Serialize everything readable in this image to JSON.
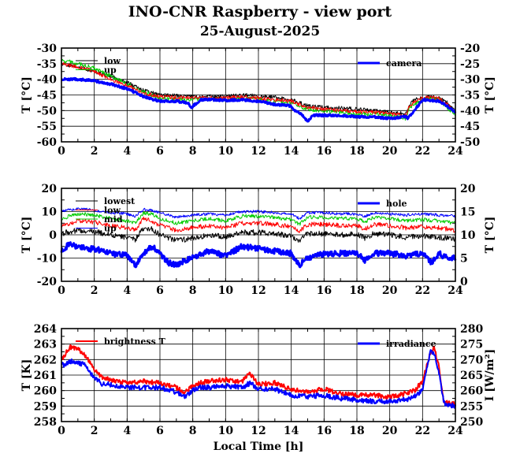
{
  "title": "INO-CNR Raspberry - view port",
  "subtitle": "25-August-2025",
  "colors": {
    "black": "#000000",
    "red": "#ff0000",
    "green": "#00cc00",
    "blue": "#0000ff"
  },
  "chart_data": [
    {
      "type": "line",
      "xlabel": "",
      "ylabel": "T [°C]",
      "y2label": "T [°C]",
      "xlim": [
        0,
        24
      ],
      "ylim": [
        -60,
        -30
      ],
      "y2lim": [
        -50,
        -20
      ],
      "xticks": [
        "0",
        "2",
        "4",
        "6",
        "8",
        "10",
        "12",
        "14",
        "16",
        "18",
        "20",
        "22",
        "24"
      ],
      "yticks": [
        "-60",
        "-55",
        "-50",
        "-45",
        "-40",
        "-35",
        "-30"
      ],
      "y2ticks": [
        "-50",
        "-45",
        "-40",
        "-35",
        "-30",
        "-25",
        "-20"
      ],
      "grid": true,
      "legend": [
        "low",
        "up"
      ],
      "legend2": [
        "camera"
      ],
      "series": [
        {
          "name": "low",
          "color": "#000000",
          "axis": "left",
          "jitter": 0.6,
          "x": [
            0,
            1,
            2,
            3,
            4,
            5,
            6,
            7,
            8,
            9,
            10,
            11,
            12,
            13,
            14,
            15,
            16,
            17,
            18,
            19,
            20,
            21,
            21.2,
            21.6,
            22,
            22.5,
            23,
            23.5,
            24
          ],
          "y": [
            -35,
            -36,
            -37.5,
            -39,
            -41,
            -43.5,
            -45,
            -45.2,
            -45.6,
            -45.5,
            -45.5,
            -45,
            -45.3,
            -45.8,
            -46.5,
            -48.5,
            -49,
            -49.2,
            -49.5,
            -50,
            -50.5,
            -51,
            -48,
            -46,
            -46,
            -45.5,
            -46,
            -47.5,
            -50
          ]
        },
        {
          "name": "up",
          "color": "#00cc00",
          "axis": "left",
          "jitter": 0.7,
          "x": [
            0,
            1,
            2,
            3,
            4,
            5,
            6,
            7,
            8,
            9,
            10,
            11,
            12,
            13,
            14,
            15,
            16,
            17,
            18,
            19,
            20,
            21,
            21.2,
            21.6,
            22,
            22.5,
            23,
            23.5,
            24
          ],
          "y": [
            -34,
            -35,
            -36.5,
            -39,
            -41.5,
            -44,
            -46,
            -46.3,
            -46.5,
            -46.3,
            -46.5,
            -46,
            -46.5,
            -47,
            -47.5,
            -49.5,
            -50,
            -50.5,
            -51,
            -51,
            -51.5,
            -52.5,
            -49,
            -47.5,
            -46.5,
            -46,
            -46.5,
            -49,
            -51.5
          ]
        },
        {
          "name": "",
          "color": "#ff0000",
          "axis": "left",
          "jitter": 0.6,
          "x": [
            0,
            1,
            2,
            3,
            4,
            5,
            6,
            7,
            8,
            9,
            10,
            11,
            12,
            13,
            14,
            15,
            16,
            17,
            18,
            19,
            20,
            21,
            21.2,
            21.6,
            22,
            22.5,
            23,
            23.5,
            24
          ],
          "y": [
            -35,
            -36,
            -37.5,
            -40,
            -42,
            -44.5,
            -45.5,
            -45.8,
            -46,
            -45.8,
            -46,
            -45.5,
            -46,
            -46.5,
            -47,
            -49,
            -49.5,
            -50,
            -50.3,
            -50.5,
            -51,
            -51.5,
            -48.5,
            -47,
            -46,
            -45.8,
            -46.2,
            -48,
            -50.5
          ]
        },
        {
          "name": "camera",
          "color": "#0000ff",
          "axis": "right",
          "jitter": 0.35,
          "width": 3,
          "x": [
            0,
            1,
            2,
            3,
            4,
            5,
            6,
            7,
            7.7,
            7.9,
            8.5,
            9,
            10,
            11,
            12,
            13,
            14,
            14.2,
            14.7,
            15,
            15.3,
            16,
            17,
            18,
            19,
            20,
            21,
            21.1,
            21.5,
            22,
            23,
            23.5,
            24
          ],
          "y": [
            -30,
            -30,
            -30.5,
            -31.5,
            -33,
            -35.5,
            -37,
            -37,
            -37.5,
            -39,
            -36.5,
            -36.5,
            -36.7,
            -36.5,
            -37,
            -38,
            -38.5,
            -40,
            -41.5,
            -43.5,
            -41.5,
            -41.5,
            -41.5,
            -42,
            -42,
            -42.5,
            -42,
            -42.5,
            -40,
            -36.5,
            -37,
            -38.5,
            -40.5
          ]
        }
      ]
    },
    {
      "type": "line",
      "xlabel": "",
      "ylabel": "T [°C]",
      "y2label": "T [°C]",
      "xlim": [
        0,
        24
      ],
      "ylim": [
        -20,
        20
      ],
      "y2lim": [
        0,
        20
      ],
      "xticks": [
        "0",
        "2",
        "4",
        "6",
        "8",
        "10",
        "12",
        "14",
        "16",
        "18",
        "20",
        "22",
        "24"
      ],
      "yticks": [
        "-20",
        "-10",
        "0",
        "10",
        "20"
      ],
      "y2ticks": [
        "0",
        "5",
        "10",
        "15",
        "20"
      ],
      "grid": true,
      "legend": [
        "lowest",
        "low",
        "mid",
        "up"
      ],
      "legend2": [
        "hole"
      ],
      "series": [
        {
          "name": "lowest",
          "color": "#000000",
          "axis": "left",
          "jitter": 1.2,
          "x": [
            0,
            1,
            2,
            3,
            4,
            4.5,
            5,
            5.5,
            6,
            7,
            8,
            9,
            10,
            11,
            12,
            13,
            14,
            14.5,
            15,
            16,
            17,
            18,
            18.5,
            19,
            20,
            21,
            22,
            23,
            24
          ],
          "y": [
            0.5,
            2,
            1.5,
            0,
            -1,
            -2,
            3,
            2.5,
            0,
            -2.5,
            -1.5,
            0,
            -1,
            1,
            1,
            0.5,
            -0.5,
            -2.5,
            0.5,
            0.5,
            0,
            0.5,
            -1.5,
            0.5,
            0,
            -1,
            -0.5,
            -1,
            -2
          ]
        },
        {
          "name": "low",
          "color": "#ff0000",
          "axis": "left",
          "jitter": 1.0,
          "x": [
            0,
            1,
            2,
            3,
            4,
            4.5,
            5,
            5.5,
            6,
            7,
            8,
            9,
            10,
            11,
            12,
            13,
            14,
            14.5,
            15,
            16,
            17,
            18,
            18.5,
            19,
            20,
            21,
            22,
            23,
            24
          ],
          "y": [
            4,
            6,
            5.5,
            4,
            3,
            2,
            7,
            6,
            4,
            2,
            3,
            4,
            3,
            5,
            5,
            4.5,
            3.5,
            1.5,
            4.5,
            4.5,
            4,
            4,
            2.5,
            4.5,
            4,
            3,
            3.5,
            3,
            2
          ]
        },
        {
          "name": "mid",
          "color": "#00cc00",
          "axis": "left",
          "jitter": 0.8,
          "x": [
            0,
            1,
            2,
            3,
            4,
            4.5,
            5,
            5.5,
            6,
            7,
            8,
            9,
            10,
            11,
            12,
            13,
            14,
            14.5,
            15,
            16,
            17,
            18,
            18.5,
            19,
            20,
            21,
            22,
            23,
            24
          ],
          "y": [
            7,
            9,
            8.5,
            7,
            6,
            5,
            9.5,
            9,
            7,
            5,
            6,
            7,
            6,
            8,
            8,
            7.5,
            6.5,
            4.5,
            7.5,
            7.5,
            7,
            7,
            5.5,
            7.5,
            7,
            6,
            6.5,
            6,
            5
          ]
        },
        {
          "name": "up",
          "color": "#0000ff",
          "axis": "left",
          "jitter": 0.6,
          "width": 1,
          "x": [
            0,
            1,
            2,
            3,
            4,
            4.5,
            5,
            5.5,
            6,
            7,
            8,
            9,
            10,
            11,
            12,
            13,
            14,
            14.5,
            15,
            16,
            17,
            18,
            18.5,
            19,
            20,
            21,
            22,
            23,
            24
          ],
          "y": [
            10,
            11.5,
            10.5,
            9.5,
            9,
            8,
            11,
            10.5,
            9.5,
            7.5,
            8.5,
            9,
            8.5,
            10,
            10,
            9.5,
            9,
            7,
            9.5,
            9.5,
            9,
            9,
            8,
            9.5,
            9,
            8.5,
            9,
            8.5,
            8
          ]
        },
        {
          "name": "hole",
          "color": "#0000ff",
          "axis": "right",
          "jitter": 0.6,
          "width": 3,
          "x": [
            0,
            0.5,
            1,
            1.5,
            2,
            3,
            4,
            4.5,
            5,
            5.5,
            6,
            6.5,
            7,
            7.5,
            8,
            9,
            10,
            11,
            12,
            13,
            14,
            14.5,
            15,
            16,
            17,
            18,
            18.5,
            19,
            20,
            21,
            22,
            22.5,
            23,
            23.5,
            24
          ],
          "y": [
            6.5,
            8,
            7.5,
            7,
            7,
            6,
            5.5,
            3.5,
            6,
            7.5,
            6,
            4,
            3.5,
            4.5,
            5,
            6.5,
            5.5,
            7.5,
            7,
            6.5,
            6,
            3.5,
            5,
            6,
            6,
            6,
            4.5,
            6,
            6,
            5.5,
            6,
            4,
            6,
            5,
            5
          ]
        }
      ]
    },
    {
      "type": "line",
      "xlabel": "Local Time [h]",
      "ylabel": "T [K]",
      "y2label": "I [W/m²]",
      "xlim": [
        0,
        24
      ],
      "ylim": [
        258,
        264
      ],
      "y2lim": [
        250,
        280
      ],
      "xticks": [
        "0",
        "2",
        "4",
        "6",
        "8",
        "10",
        "12",
        "14",
        "16",
        "18",
        "20",
        "22",
        "24"
      ],
      "yticks": [
        "258",
        "259",
        "260",
        "261",
        "262",
        "263",
        "264"
      ],
      "y2ticks": [
        "250",
        "255",
        "260",
        "265",
        "270",
        "275",
        "280"
      ],
      "grid": true,
      "legend": [
        "brightness T"
      ],
      "legend2": [
        "irradiance"
      ],
      "series": [
        {
          "name": "brightness T",
          "color": "#ff0000",
          "axis": "left",
          "jitter": 0.15,
          "width": 2,
          "x": [
            0,
            0.5,
            1,
            1.5,
            2,
            2.5,
            3,
            4,
            5,
            6,
            7,
            7.5,
            8,
            8.5,
            9,
            10,
            11,
            11.5,
            12,
            13,
            14,
            15,
            16,
            17,
            18,
            19,
            20,
            21,
            21.5,
            22,
            22.5,
            22.7,
            23,
            23.3,
            23.6,
            24
          ],
          "y": [
            262,
            262.8,
            262.7,
            262.2,
            261.3,
            260.8,
            260.7,
            260.5,
            260.6,
            260.5,
            260.2,
            259.9,
            260.3,
            260.5,
            260.6,
            260.7,
            260.6,
            261.1,
            260.4,
            260.5,
            260.1,
            259.9,
            260.1,
            259.8,
            259.7,
            259.7,
            259.6,
            259.8,
            260,
            260.6,
            262.5,
            262.8,
            261.5,
            259.3,
            259.2,
            259.1
          ]
        },
        {
          "name": "irradiance",
          "color": "#0000ff",
          "axis": "right",
          "jitter": 0.8,
          "width": 2,
          "x": [
            0,
            0.5,
            1,
            1.5,
            2,
            2.5,
            3,
            4,
            5,
            6,
            7,
            7.5,
            8,
            8.5,
            9,
            10,
            11,
            11.5,
            12,
            13,
            14,
            15,
            16,
            17,
            18,
            19,
            20,
            21,
            21.5,
            22,
            22.5,
            22.7,
            23,
            23.3,
            23.6,
            24
          ],
          "y": [
            268,
            269.5,
            269,
            268,
            264,
            262,
            262,
            261,
            261,
            261,
            259.5,
            258,
            260,
            261,
            261,
            261.5,
            261,
            262.5,
            260.5,
            260.5,
            258.5,
            258,
            258.5,
            257.5,
            257,
            256.5,
            256.5,
            257,
            258,
            260,
            273,
            272,
            266,
            256,
            255.5,
            255
          ]
        }
      ]
    }
  ]
}
